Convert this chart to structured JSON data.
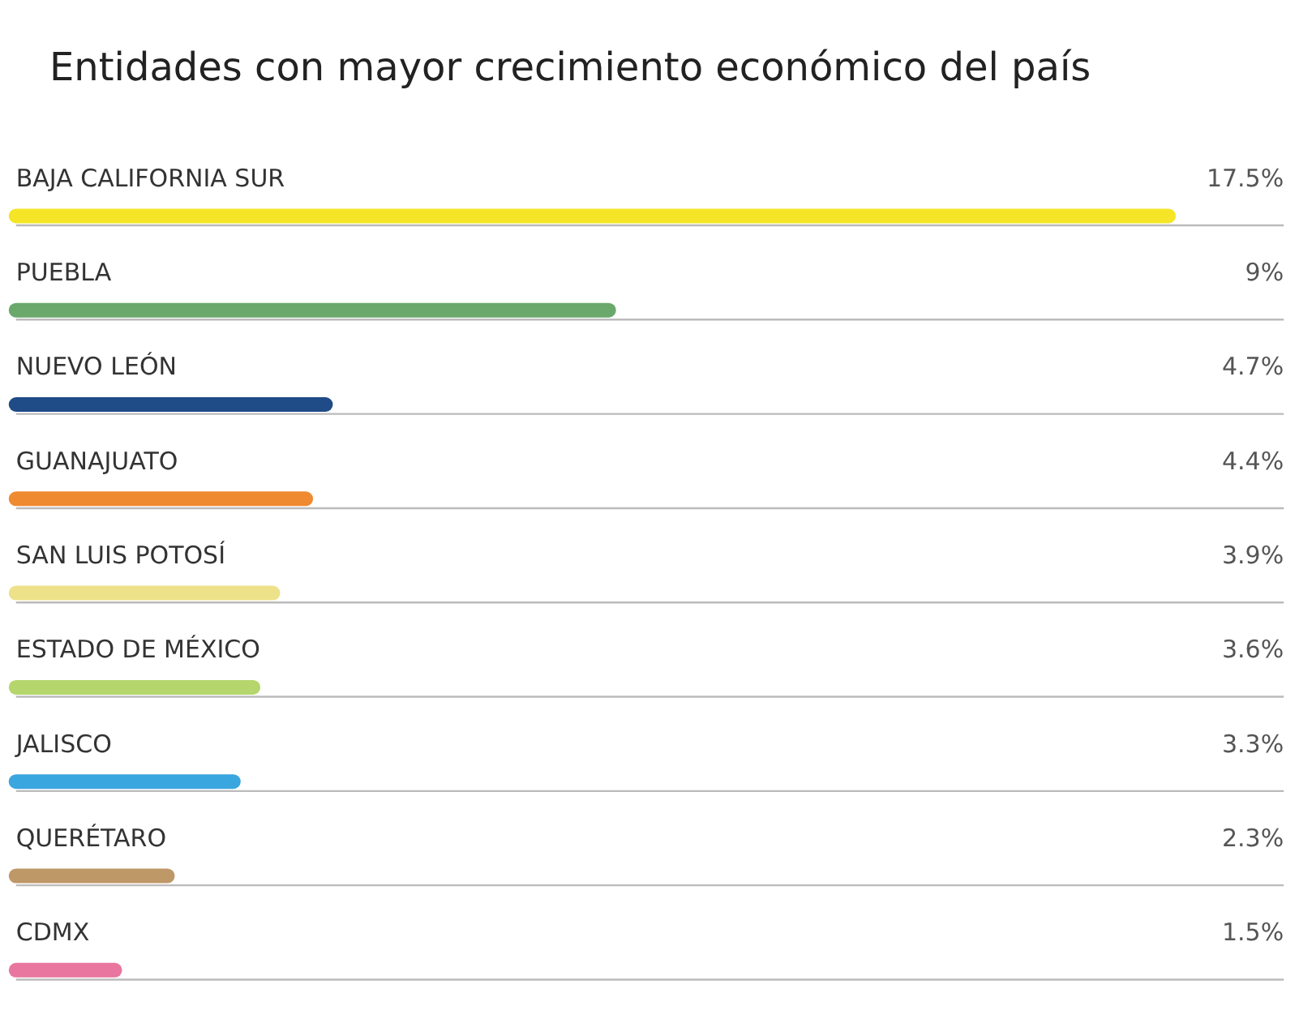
{
  "chart_data": {
    "type": "bar",
    "orientation": "horizontal",
    "title": "Entidades con mayor crecimiento económico del  país",
    "categories": [
      "BAJA CALIFORNIA SUR",
      "PUEBLA",
      "NUEVO LEÓN",
      "GUANAJUATO",
      "SAN LUIS POTOSÍ",
      "ESTADO DE MÉXICO",
      "JALISCO",
      "QUERÉTARO",
      "CDMX"
    ],
    "values": [
      17.5,
      9,
      4.7,
      4.4,
      3.9,
      3.6,
      3.3,
      2.3,
      1.5
    ],
    "value_labels": [
      "17.5%",
      "9%",
      "4.7%",
      "4.4%",
      "3.9%",
      "3.6%",
      "3.3%",
      "2.3%",
      "1.5%"
    ],
    "colors": [
      "#f5e526",
      "#6aa86c",
      "#1f4b86",
      "#ef8a30",
      "#ede28a",
      "#b4d66c",
      "#3aa6df",
      "#bf9868",
      "#e8769f"
    ],
    "grid": false
  }
}
